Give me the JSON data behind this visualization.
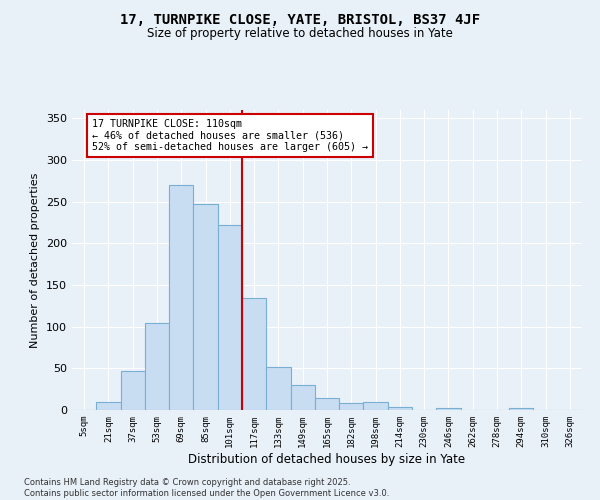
{
  "title": "17, TURNPIKE CLOSE, YATE, BRISTOL, BS37 4JF",
  "subtitle": "Size of property relative to detached houses in Yate",
  "xlabel": "Distribution of detached houses by size in Yate",
  "ylabel": "Number of detached properties",
  "categories": [
    "5sqm",
    "21sqm",
    "37sqm",
    "53sqm",
    "69sqm",
    "85sqm",
    "101sqm",
    "117sqm",
    "133sqm",
    "149sqm",
    "165sqm",
    "182sqm",
    "198sqm",
    "214sqm",
    "230sqm",
    "246sqm",
    "262sqm",
    "278sqm",
    "294sqm",
    "310sqm",
    "326sqm"
  ],
  "values": [
    0,
    10,
    47,
    105,
    270,
    247,
    222,
    135,
    52,
    30,
    15,
    8,
    10,
    4,
    0,
    3,
    0,
    0,
    3,
    0,
    0
  ],
  "bar_color": "#c9ddf2",
  "bar_edge_color": "#7aafd4",
  "vline_color": "#cc0000",
  "annotation_text": "17 TURNPIKE CLOSE: 110sqm\n← 46% of detached houses are smaller (536)\n52% of semi-detached houses are larger (605) →",
  "annotation_box_color": "#ffffff",
  "annotation_box_edge": "#cc0000",
  "bg_color": "#e8f0f8",
  "grid_color": "#ffffff",
  "footer": "Contains HM Land Registry data © Crown copyright and database right 2025.\nContains public sector information licensed under the Open Government Licence v3.0.",
  "ylim": [
    0,
    360
  ],
  "yticks": [
    0,
    50,
    100,
    150,
    200,
    250,
    300,
    350
  ]
}
